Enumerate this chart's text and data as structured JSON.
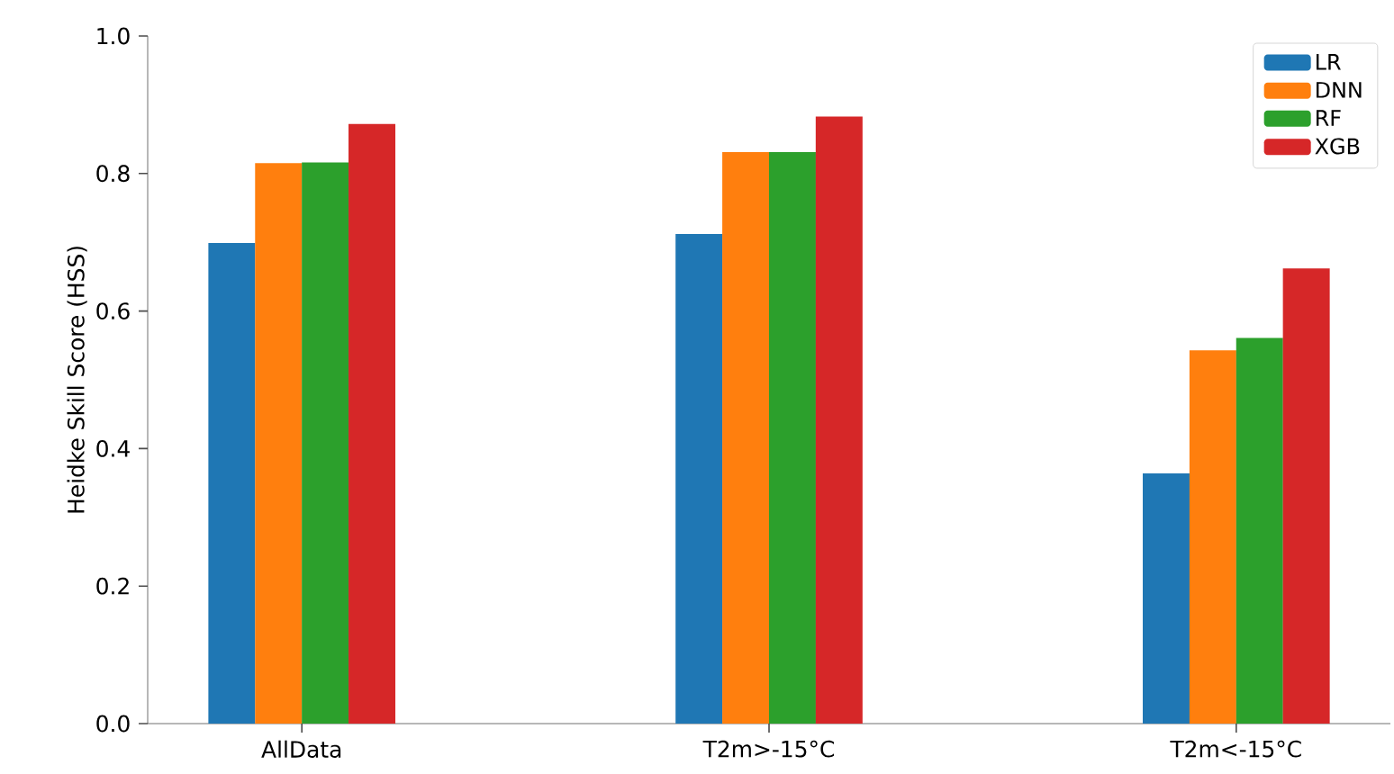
{
  "chart_data": {
    "type": "bar",
    "ylabel": "Heidke Skill Score (HSS)",
    "categories": [
      "AllData",
      "T2m>-15°C",
      "T2m<-15°C"
    ],
    "series": [
      {
        "name": "LR",
        "color": "#1f77b4",
        "values": [
          0.699,
          0.712,
          0.364
        ]
      },
      {
        "name": "DNN",
        "color": "#ff7f0e",
        "values": [
          0.815,
          0.831,
          0.543
        ]
      },
      {
        "name": "RF",
        "color": "#2ca02c",
        "values": [
          0.816,
          0.831,
          0.561
        ]
      },
      {
        "name": "XGB",
        "color": "#d62728",
        "values": [
          0.872,
          0.883,
          0.662
        ]
      }
    ],
    "ylim": [
      0,
      1
    ],
    "yticks": [
      {
        "value": 0,
        "label": "0.0"
      },
      0.2,
      0.4,
      0.6,
      0.8,
      {
        "value": 1,
        "label": "1.0"
      }
    ],
    "grid": false,
    "legend": "top right"
  }
}
